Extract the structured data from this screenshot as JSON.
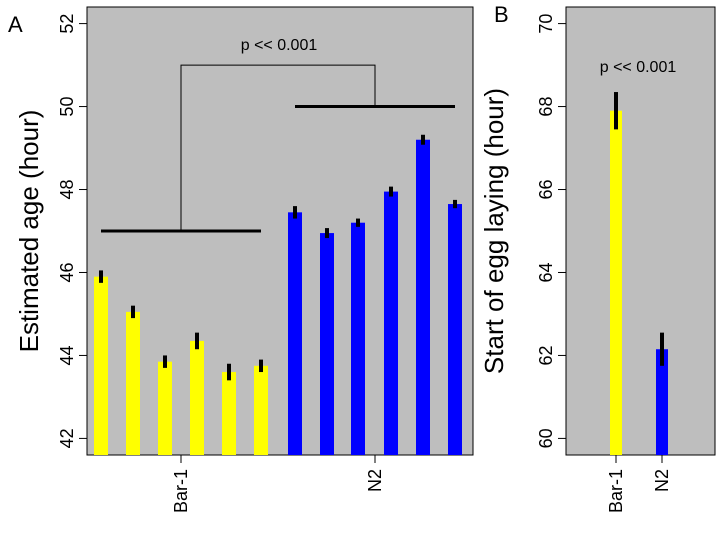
{
  "colors": {
    "bar1": "#ffff00",
    "n2": "#0000ff",
    "panel_bg": "#bebebe",
    "error": "#000000"
  },
  "chart_data": [
    {
      "type": "bar",
      "panel_label": "A",
      "ylabel": "Estimated age (hour)",
      "ylim": [
        41.6,
        52.4
      ],
      "yticks": [
        42,
        44,
        46,
        48,
        50,
        52
      ],
      "group_labels": [
        "Bar-1",
        "N2"
      ],
      "annotation": "p << 0.001",
      "series": [
        {
          "name": "Bar-1",
          "color": "#ffff00",
          "values": [
            45.9,
            45.05,
            43.85,
            44.35,
            43.6,
            43.75
          ],
          "errors": [
            0.15,
            0.15,
            0.15,
            0.2,
            0.2,
            0.15
          ]
        },
        {
          "name": "N2",
          "color": "#0000ff",
          "values": [
            47.45,
            46.95,
            47.2,
            47.95,
            49.2,
            47.65
          ],
          "errors": [
            0.15,
            0.12,
            0.1,
            0.12,
            0.12,
            0.1
          ]
        }
      ],
      "group_means": [
        47.0,
        50.0
      ],
      "bracket_top": 51.0
    },
    {
      "type": "bar",
      "panel_label": "B",
      "ylabel": "Start of egg laying (hour)",
      "ylim": [
        59.6,
        70.4
      ],
      "yticks": [
        60,
        62,
        64,
        66,
        68,
        70
      ],
      "annotation": "p << 0.001",
      "categories": [
        "Bar-1",
        "N2"
      ],
      "values": [
        67.9,
        62.15
      ],
      "errors": [
        0.45,
        0.4
      ],
      "colors": [
        "#ffff00",
        "#0000ff"
      ]
    }
  ]
}
